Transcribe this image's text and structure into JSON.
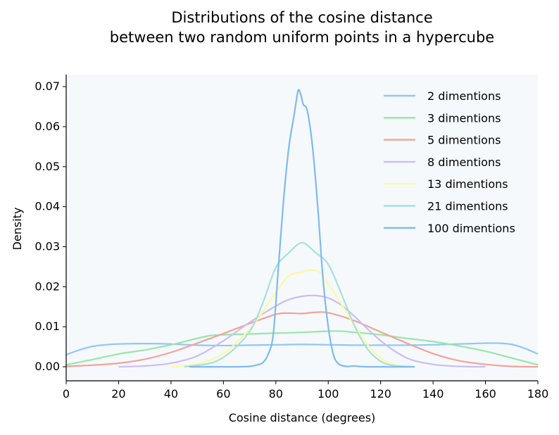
{
  "chart_data": {
    "type": "line",
    "title": [
      "Distributions of the cosine distance",
      "between two random uniform points in a hypercube"
    ],
    "xlabel": "Cosine distance (degrees)",
    "ylabel": "Density",
    "xlim": [
      0,
      180
    ],
    "ylim": [
      -0.0035,
      0.073
    ],
    "xticks": [
      0,
      20,
      40,
      60,
      80,
      100,
      120,
      140,
      160,
      180
    ],
    "yticks": [
      0.0,
      0.01,
      0.02,
      0.03,
      0.04,
      0.05,
      0.06,
      0.07
    ],
    "ytick_labels": [
      "0.00",
      "0.01",
      "0.02",
      "0.03",
      "0.04",
      "0.05",
      "0.06",
      "0.07"
    ],
    "grid": false,
    "plot_background": "#f5f9fc",
    "legend_position": "top-right",
    "series": [
      {
        "name": "2 dimentions",
        "color": "#92c6f5",
        "points": [
          [
            0,
            0.003
          ],
          [
            5,
            0.0042
          ],
          [
            10,
            0.0051
          ],
          [
            15,
            0.0055
          ],
          [
            20,
            0.0057
          ],
          [
            30,
            0.0058
          ],
          [
            40,
            0.0057
          ],
          [
            50,
            0.0054
          ],
          [
            60,
            0.0053
          ],
          [
            70,
            0.0054
          ],
          [
            80,
            0.0055
          ],
          [
            90,
            0.0056
          ],
          [
            100,
            0.0055
          ],
          [
            110,
            0.0054
          ],
          [
            120,
            0.0054
          ],
          [
            130,
            0.0054
          ],
          [
            140,
            0.0055
          ],
          [
            150,
            0.0057
          ],
          [
            160,
            0.0059
          ],
          [
            165,
            0.0059
          ],
          [
            170,
            0.0056
          ],
          [
            175,
            0.0046
          ],
          [
            180,
            0.0032
          ]
        ]
      },
      {
        "name": "3 dimentions",
        "color": "#98e6a6",
        "points": [
          [
            0,
            0.0005
          ],
          [
            10,
            0.0018
          ],
          [
            20,
            0.0032
          ],
          [
            30,
            0.0042
          ],
          [
            40,
            0.0055
          ],
          [
            50,
            0.0071
          ],
          [
            55,
            0.0078
          ],
          [
            60,
            0.008
          ],
          [
            70,
            0.0082
          ],
          [
            80,
            0.0084
          ],
          [
            90,
            0.0086
          ],
          [
            100,
            0.0089
          ],
          [
            105,
            0.0089
          ],
          [
            110,
            0.0086
          ],
          [
            120,
            0.008
          ],
          [
            130,
            0.0071
          ],
          [
            140,
            0.0063
          ],
          [
            150,
            0.0052
          ],
          [
            160,
            0.0039
          ],
          [
            170,
            0.0022
          ],
          [
            180,
            0.0005
          ]
        ]
      },
      {
        "name": "5 dimentions",
        "color": "#f4a29a",
        "points": [
          [
            0,
            0.0001
          ],
          [
            10,
            0.0004
          ],
          [
            20,
            0.0009
          ],
          [
            30,
            0.0019
          ],
          [
            40,
            0.0036
          ],
          [
            50,
            0.0059
          ],
          [
            60,
            0.0083
          ],
          [
            70,
            0.0108
          ],
          [
            80,
            0.0131
          ],
          [
            85,
            0.0134
          ],
          [
            90,
            0.0133
          ],
          [
            95,
            0.0136
          ],
          [
            100,
            0.0135
          ],
          [
            110,
            0.0115
          ],
          [
            120,
            0.0087
          ],
          [
            130,
            0.0059
          ],
          [
            140,
            0.0033
          ],
          [
            150,
            0.0015
          ],
          [
            160,
            0.0006
          ],
          [
            170,
            0.0001
          ],
          [
            180,
            0
          ]
        ]
      },
      {
        "name": "8 dimentions",
        "color": "#cbbcf6",
        "points": [
          [
            20,
            0
          ],
          [
            30,
            0.0002
          ],
          [
            40,
            0.0009
          ],
          [
            50,
            0.0027
          ],
          [
            60,
            0.0065
          ],
          [
            70,
            0.0111
          ],
          [
            80,
            0.0152
          ],
          [
            85,
            0.0168
          ],
          [
            90,
            0.0176
          ],
          [
            95,
            0.0178
          ],
          [
            100,
            0.0172
          ],
          [
            105,
            0.0154
          ],
          [
            110,
            0.0126
          ],
          [
            120,
            0.0065
          ],
          [
            130,
            0.0022
          ],
          [
            140,
            0.0006
          ],
          [
            150,
            0.0001
          ],
          [
            160,
            0
          ]
        ]
      },
      {
        "name": "13 dimentions",
        "color": "#fdf8a0",
        "points": [
          [
            40,
            0
          ],
          [
            50,
            0.0007
          ],
          [
            60,
            0.0033
          ],
          [
            70,
            0.0094
          ],
          [
            75,
            0.0137
          ],
          [
            80,
            0.0186
          ],
          [
            85,
            0.0228
          ],
          [
            90,
            0.0236
          ],
          [
            93,
            0.0242
          ],
          [
            97,
            0.0235
          ],
          [
            100,
            0.0208
          ],
          [
            105,
            0.0157
          ],
          [
            110,
            0.0103
          ],
          [
            115,
            0.0055
          ],
          [
            120,
            0.0022
          ],
          [
            125,
            0.0006
          ],
          [
            130,
            0
          ]
        ]
      },
      {
        "name": "21 dimentions",
        "color": "#a8dfdb",
        "points": [
          [
            45,
            0
          ],
          [
            55,
            0.0009
          ],
          [
            62,
            0.0033
          ],
          [
            70,
            0.0088
          ],
          [
            75,
            0.0159
          ],
          [
            80,
            0.0248
          ],
          [
            85,
            0.0285
          ],
          [
            90,
            0.031
          ],
          [
            95,
            0.0286
          ],
          [
            100,
            0.0256
          ],
          [
            105,
            0.0183
          ],
          [
            110,
            0.0103
          ],
          [
            115,
            0.0044
          ],
          [
            120,
            0.0014
          ],
          [
            125,
            0.0003
          ],
          [
            133,
            0
          ]
        ]
      },
      {
        "name": "100 dimentions",
        "color": "#7fbaf0",
        "points": [
          [
            47,
            0
          ],
          [
            55,
            0
          ],
          [
            65,
            0
          ],
          [
            70,
            0.0001
          ],
          [
            73,
            0.0005
          ],
          [
            75,
            0.001
          ],
          [
            77,
            0.003
          ],
          [
            79,
            0.008
          ],
          [
            81,
            0.025
          ],
          [
            83,
            0.042
          ],
          [
            85,
            0.055
          ],
          [
            87,
            0.063
          ],
          [
            88.5,
            0.069
          ],
          [
            89.5,
            0.068
          ],
          [
            90.5,
            0.0655
          ],
          [
            92,
            0.064
          ],
          [
            94,
            0.055
          ],
          [
            96,
            0.04
          ],
          [
            98,
            0.022
          ],
          [
            100,
            0.01
          ],
          [
            102,
            0.003
          ],
          [
            104,
            0.0007
          ],
          [
            107,
            0.0001
          ],
          [
            110,
            0.0002
          ],
          [
            115,
            0
          ],
          [
            133,
            0
          ]
        ]
      }
    ]
  }
}
